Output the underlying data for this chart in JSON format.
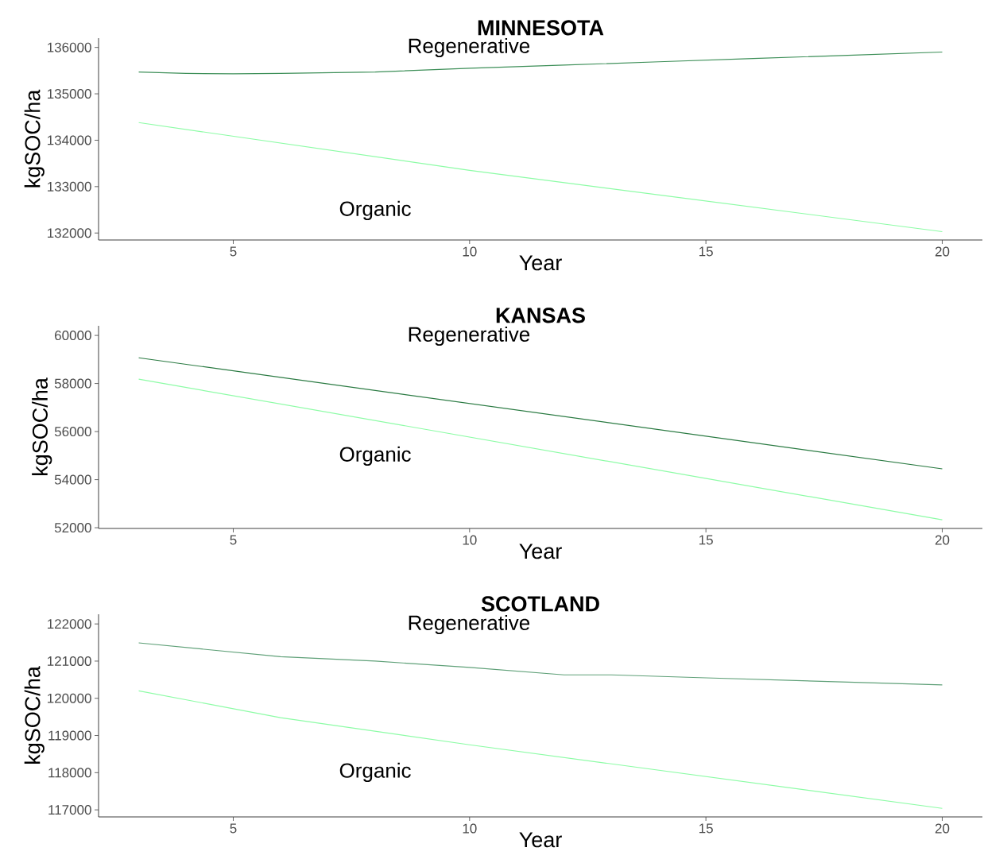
{
  "chart_data": [
    {
      "type": "line",
      "title": "MINNESOTA",
      "xlabel": "Year",
      "ylabel": "kgSOC/ha",
      "xlim": [
        2.15,
        20.85
      ],
      "ylim": [
        131850,
        136200
      ],
      "xticks": [
        5,
        10,
        15,
        20
      ],
      "yticks": [
        132000,
        133000,
        134000,
        135000,
        136000
      ],
      "grid": false,
      "series": [
        {
          "name": "Regenerative",
          "color": "#3d8f58",
          "x": [
            3,
            4,
            5,
            6,
            8,
            10,
            12,
            14,
            16,
            18,
            20
          ],
          "values": [
            135470,
            135440,
            135430,
            135440,
            135470,
            135550,
            135620,
            135690,
            135760,
            135830,
            135900
          ]
        },
        {
          "name": "Organic",
          "color": "#8dfca6",
          "x": [
            3,
            10,
            20
          ],
          "values": [
            134380,
            133350,
            132030
          ]
        }
      ]
    },
    {
      "type": "line",
      "title": "KANSAS",
      "xlabel": "Year",
      "ylabel": "kgSOC/ha",
      "xlim": [
        2.15,
        20.85
      ],
      "ylim": [
        51970,
        60400
      ],
      "xticks": [
        5,
        10,
        15,
        20
      ],
      "yticks": [
        52000,
        54000,
        56000,
        58000,
        60000
      ],
      "grid": false,
      "series": [
        {
          "name": "Regenerative",
          "color": "#2a7a42",
          "x": [
            3,
            20
          ],
          "values": [
            59070,
            54450
          ]
        },
        {
          "name": "Organic",
          "color": "#8dfca6",
          "x": [
            3,
            20
          ],
          "values": [
            58180,
            52330
          ]
        }
      ]
    },
    {
      "type": "line",
      "title": "SCOTLAND",
      "xlabel": "Year",
      "ylabel": "kgSOC/ha",
      "xlim": [
        2.15,
        20.85
      ],
      "ylim": [
        116810,
        122260
      ],
      "xticks": [
        5,
        10,
        15,
        20
      ],
      "yticks": [
        117000,
        118000,
        119000,
        120000,
        121000,
        122000
      ],
      "grid": false,
      "series": [
        {
          "name": "Regenerative",
          "color": "#5fa078",
          "x": [
            3,
            6,
            8,
            10,
            12,
            13,
            15,
            20
          ],
          "values": [
            121490,
            121120,
            121000,
            120830,
            120630,
            120630,
            120550,
            120360
          ]
        },
        {
          "name": "Organic",
          "color": "#8dfca6",
          "x": [
            3,
            6,
            10,
            20
          ],
          "values": [
            120200,
            119480,
            118750,
            117040
          ]
        }
      ]
    }
  ]
}
